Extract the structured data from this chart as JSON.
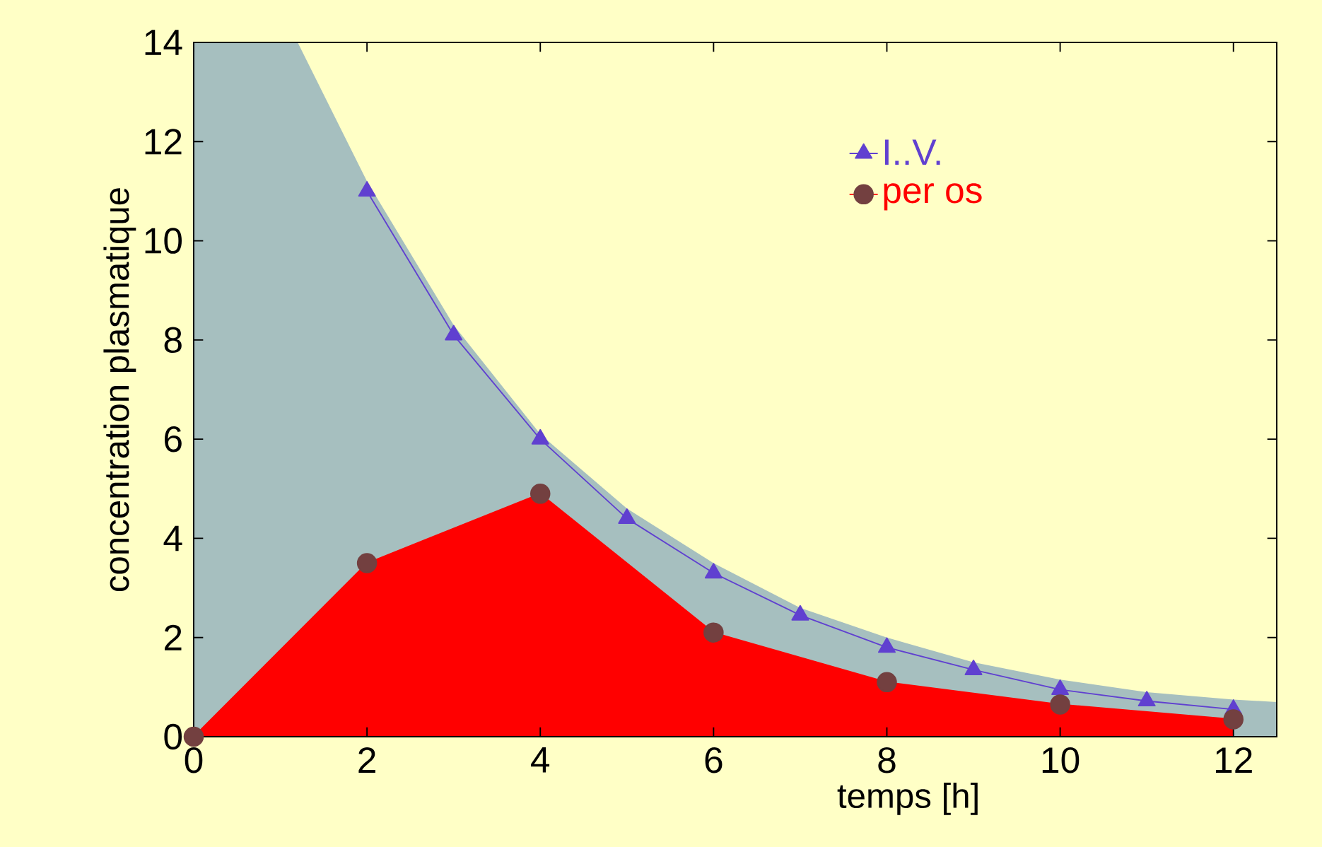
{
  "chart_data": {
    "type": "line",
    "xlabel": "temps [h]",
    "ylabel": "concentration plasmatique",
    "xlim": [
      0,
      12.5
    ],
    "ylim": [
      0,
      14
    ],
    "xticks": [
      0,
      2,
      4,
      6,
      8,
      10,
      12
    ],
    "yticks": [
      0,
      2,
      4,
      6,
      8,
      10,
      12,
      14
    ],
    "grid": false,
    "legend": "top right",
    "series": [
      {
        "type": "area",
        "color": "#a6bfbf",
        "x": [
          0,
          1.2,
          2,
          3,
          4,
          5,
          6,
          7,
          8,
          9,
          10,
          11,
          12,
          12.5
        ],
        "values": [
          14,
          14,
          11.2,
          8.3,
          6.1,
          4.6,
          3.5,
          2.6,
          2.0,
          1.5,
          1.15,
          0.9,
          0.75,
          0.7
        ]
      },
      {
        "name": "I..V.",
        "color": "#6040d0",
        "marker": "triangle",
        "x": [
          2,
          3,
          4,
          5,
          6,
          7,
          8,
          9,
          10,
          11,
          12
        ],
        "values": [
          11,
          8.1,
          6,
          4.4,
          3.3,
          2.45,
          1.8,
          1.35,
          0.95,
          0.72,
          0.55
        ]
      },
      {
        "type": "area",
        "name": "per os",
        "color": "#ff0000",
        "marker": "circle",
        "x": [
          0,
          2,
          4,
          6,
          8,
          10,
          12
        ],
        "values": [
          0,
          3.5,
          4.9,
          2.1,
          1.1,
          0.65,
          0.35
        ]
      }
    ]
  }
}
